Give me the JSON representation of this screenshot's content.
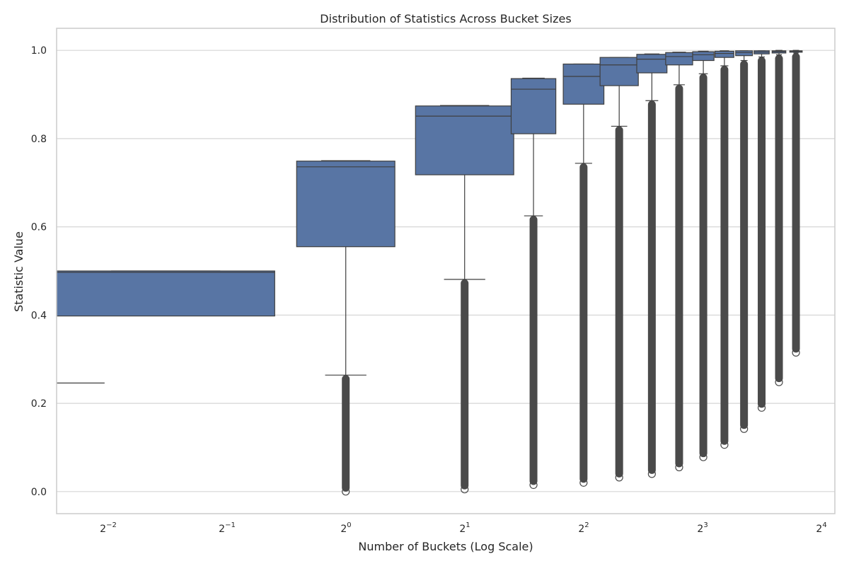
{
  "chart_data": {
    "type": "box",
    "title": "Distribution of Statistics Across Bucket Sizes",
    "xlabel": "Number of Buckets (Log Scale)",
    "ylabel": "Statistic Value",
    "x_scale": "log2",
    "xlim": [
      0.185,
      17.3
    ],
    "ylim": [
      -0.05,
      1.05
    ],
    "grid": true,
    "color": "#5875a4",
    "x_ticks": [
      {
        "base": "2",
        "exp": "−2",
        "value": 0.25
      },
      {
        "base": "2",
        "exp": "−1",
        "value": 0.5
      },
      {
        "base": "2",
        "exp": "0",
        "value": 1
      },
      {
        "base": "2",
        "exp": "1",
        "value": 2
      },
      {
        "base": "2",
        "exp": "2",
        "value": 4
      },
      {
        "base": "2",
        "exp": "3",
        "value": 8
      },
      {
        "base": "2",
        "exp": "4",
        "value": 16
      }
    ],
    "y_ticks": [
      "0.0",
      "0.2",
      "0.4",
      "0.6",
      "0.8",
      "1.0"
    ],
    "y_tick_values": [
      0.0,
      0.2,
      0.4,
      0.6,
      0.8,
      1.0
    ],
    "boxes": [
      {
        "x": 0.25,
        "left": 0.185,
        "right": 0.66,
        "q1": 0.398,
        "median": 0.497,
        "q3": 0.5,
        "whisker_low": 0.246,
        "whisker_high": 0.5,
        "flier_min": null,
        "flier_max": null
      },
      {
        "x": 1,
        "left": 0.75,
        "right": 1.33,
        "q1": 0.555,
        "median": 0.736,
        "q3": 0.749,
        "whisker_low": 0.264,
        "whisker_high": 0.75,
        "flier_min": 0.0,
        "flier_max": 0.264
      },
      {
        "x": 2,
        "left": 1.5,
        "right": 2.66,
        "q1": 0.718,
        "median": 0.851,
        "q3": 0.874,
        "whisker_low": 0.481,
        "whisker_high": 0.875,
        "flier_min": 0.005,
        "flier_max": 0.481
      },
      {
        "x": 3,
        "left": 2.62,
        "right": 3.4,
        "q1": 0.811,
        "median": 0.912,
        "q3": 0.936,
        "whisker_low": 0.625,
        "whisker_high": 0.937,
        "flier_min": 0.015,
        "flier_max": 0.625
      },
      {
        "x": 4,
        "left": 3.55,
        "right": 4.5,
        "q1": 0.878,
        "median": 0.941,
        "q3": 0.969,
        "whisker_low": 0.744,
        "whisker_high": 0.969,
        "flier_min": 0.02,
        "flier_max": 0.744
      },
      {
        "x": 5,
        "left": 4.4,
        "right": 5.5,
        "q1": 0.92,
        "median": 0.967,
        "q3": 0.984,
        "whisker_low": 0.828,
        "whisker_high": 0.984,
        "flier_min": 0.032,
        "flier_max": 0.828
      },
      {
        "x": 6,
        "left": 5.45,
        "right": 6.5,
        "q1": 0.949,
        "median": 0.98,
        "q3": 0.991,
        "whisker_low": 0.886,
        "whisker_high": 0.992,
        "flier_min": 0.04,
        "flier_max": 0.886
      },
      {
        "x": 7,
        "left": 6.45,
        "right": 7.55,
        "q1": 0.967,
        "median": 0.986,
        "q3": 0.995,
        "whisker_low": 0.922,
        "whisker_high": 0.996,
        "flier_min": 0.055,
        "flier_max": 0.922
      },
      {
        "x": 8,
        "left": 7.55,
        "right": 8.55,
        "q1": 0.977,
        "median": 0.99,
        "q3": 0.997,
        "whisker_low": 0.947,
        "whisker_high": 0.998,
        "flier_min": 0.078,
        "flier_max": 0.947
      },
      {
        "x": 9,
        "left": 8.6,
        "right": 9.6,
        "q1": 0.984,
        "median": 0.993,
        "q3": 0.998,
        "whisker_low": 0.965,
        "whisker_high": 0.999,
        "flier_min": 0.106,
        "flier_max": 0.965
      },
      {
        "x": 10,
        "left": 9.7,
        "right": 10.7,
        "q1": 0.988,
        "median": 0.995,
        "q3": 0.999,
        "whisker_low": 0.977,
        "whisker_high": 0.999,
        "flier_min": 0.142,
        "flier_max": 0.977
      },
      {
        "x": 11,
        "left": 10.8,
        "right": 11.8,
        "q1": 0.992,
        "median": 0.996,
        "q3": 0.999,
        "whisker_low": 0.985,
        "whisker_high": 0.999,
        "flier_min": 0.19,
        "flier_max": 0.985
      },
      {
        "x": 12,
        "left": 12.0,
        "right": 13.0,
        "q1": 0.994,
        "median": 0.997,
        "q3": 0.999,
        "whisker_low": 0.99,
        "whisker_high": 1.0,
        "flier_min": 0.248,
        "flier_max": 0.99
      },
      {
        "x": 13,
        "left": 13.3,
        "right": 14.3,
        "q1": 0.996,
        "median": 0.998,
        "q3": 0.999,
        "whisker_low": 0.994,
        "whisker_high": 1.0,
        "flier_min": 0.315,
        "flier_max": 0.994
      }
    ]
  }
}
